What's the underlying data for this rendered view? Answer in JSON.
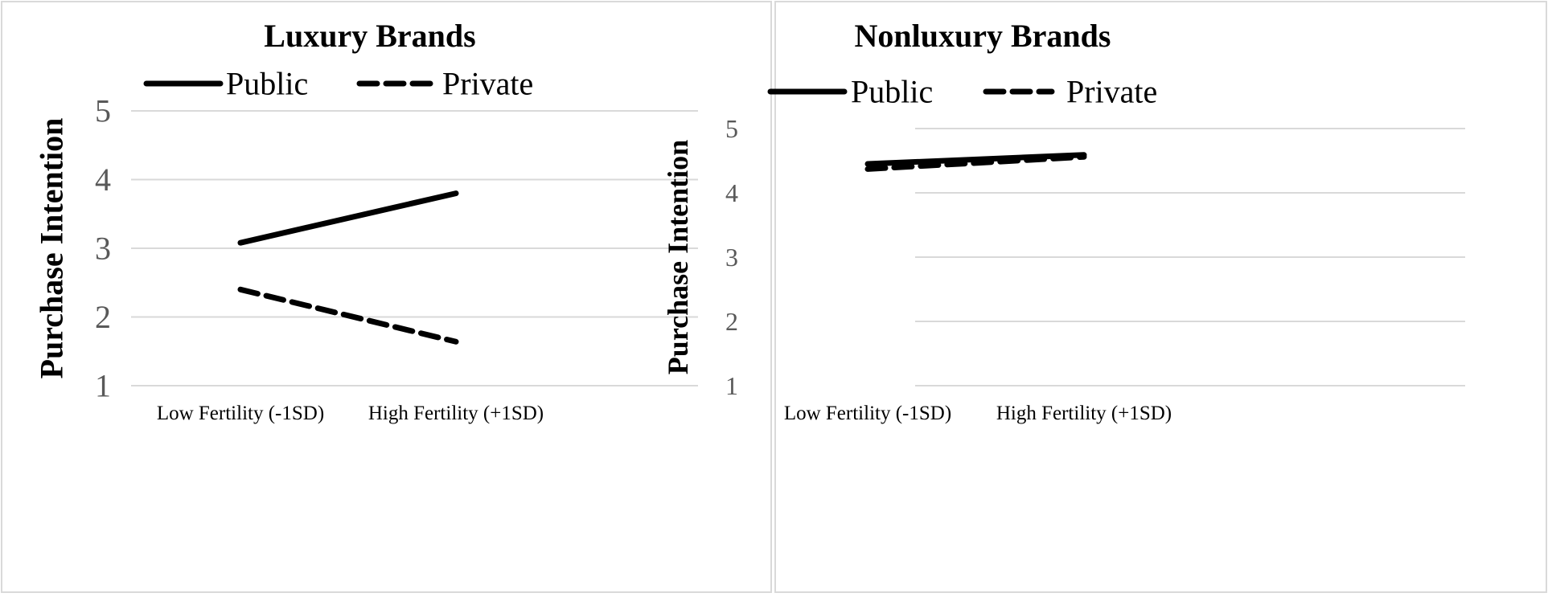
{
  "chart_data": [
    {
      "type": "line",
      "title": "Luxury Brands",
      "xlabel": "",
      "ylabel": "Purchase Intention",
      "categories": [
        "Low Fertility (-1SD)",
        "High Fertility (+1SD)"
      ],
      "yticks": [
        1,
        2,
        3,
        4,
        5
      ],
      "ylim": [
        1,
        5
      ],
      "grid": true,
      "legend_position": "top",
      "series": [
        {
          "name": "Public",
          "style": "solid",
          "color": "#000000",
          "values": [
            3.08,
            3.8
          ]
        },
        {
          "name": "Private",
          "style": "dashed",
          "color": "#000000",
          "values": [
            2.4,
            1.64
          ]
        }
      ]
    },
    {
      "type": "line",
      "title": "Nonluxury Brands",
      "xlabel": "",
      "ylabel": "Purchase Intention",
      "categories": [
        "Low Fertility (-1SD)",
        "High Fertility (+1SD)"
      ],
      "yticks": [
        1,
        2,
        3,
        4,
        5
      ],
      "ylim": [
        1,
        5
      ],
      "grid": true,
      "legend_position": "top",
      "series": [
        {
          "name": "Public",
          "style": "solid",
          "color": "#000000",
          "values": [
            4.45,
            4.59
          ]
        },
        {
          "name": "Private",
          "style": "dashed",
          "color": "#000000",
          "values": [
            4.37,
            4.56
          ]
        }
      ]
    }
  ],
  "colors": {
    "panel_border": "#d9d9d9",
    "gridline": "#d9d9d9",
    "tick_label": "#595959",
    "text": "#000000"
  }
}
